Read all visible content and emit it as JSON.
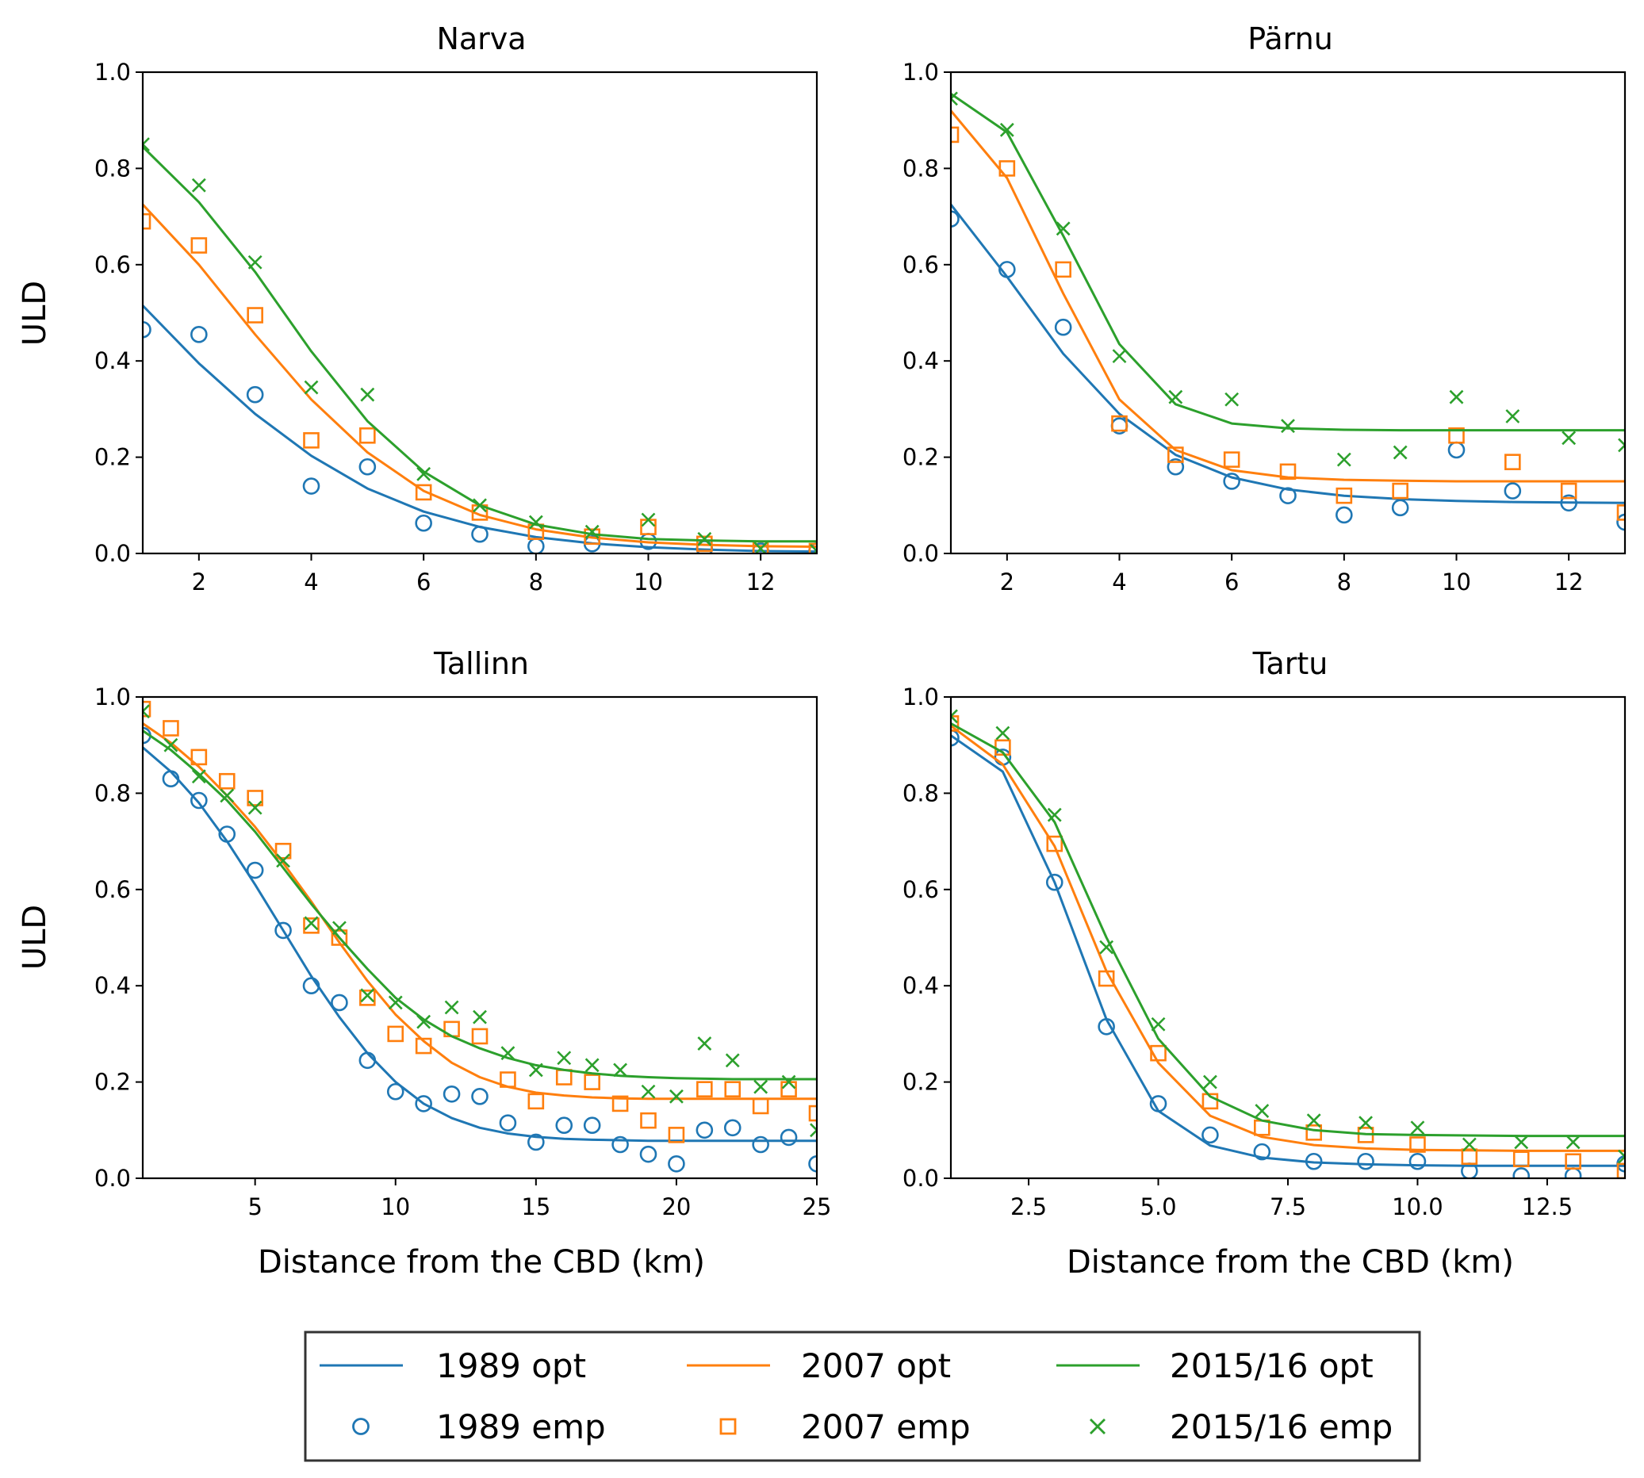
{
  "figure": {
    "colors": {
      "1989": "#1f77b4",
      "2007": "#ff7f0e",
      "2015/16": "#2ca02c"
    },
    "legend": {
      "placement": "bottom-center",
      "columns": [
        {
          "opt_label": "1989 opt",
          "emp_label": "1989 emp",
          "color": "#1f77b4",
          "marker": "circle"
        },
        {
          "opt_label": "2007 opt",
          "emp_label": "2007 emp",
          "color": "#ff7f0e",
          "marker": "square"
        },
        {
          "opt_label": "2015/16 opt",
          "emp_label": "2015/16 emp",
          "color": "#2ca02c",
          "marker": "x"
        }
      ]
    }
  },
  "chart_data": [
    {
      "type": "line",
      "title": "Narva",
      "xlabel": "",
      "ylabel": "ULD",
      "xlim": [
        1,
        13
      ],
      "ylim": [
        0,
        1
      ],
      "xticks": [
        2,
        4,
        6,
        8,
        10,
        12
      ],
      "xtick_labels": [
        "2",
        "4",
        "6",
        "8",
        "10",
        "12"
      ],
      "yticks": [
        0,
        0.2,
        0.4,
        0.6,
        0.8,
        1
      ],
      "ytick_labels": [
        "0.0",
        "0.2",
        "0.4",
        "0.6",
        "0.8",
        "1.0"
      ],
      "grid": false,
      "x": [
        1,
        2,
        3,
        4,
        5,
        6,
        7,
        8,
        9,
        10,
        11,
        12,
        13
      ],
      "series": [
        {
          "name": "1989 opt",
          "kind": "line",
          "color": "#1f77b4",
          "values": [
            0.515,
            0.395,
            0.29,
            0.203,
            0.135,
            0.087,
            0.055,
            0.034,
            0.021,
            0.013,
            0.008,
            0.005,
            0.004
          ]
        },
        {
          "name": "1989 emp",
          "kind": "marker",
          "marker": "circle",
          "color": "#1f77b4",
          "values": [
            0.465,
            0.455,
            0.33,
            0.14,
            0.18,
            0.063,
            0.04,
            0.015,
            0.02,
            0.025,
            0.01,
            0.005,
            0.005
          ]
        },
        {
          "name": "2007 opt",
          "kind": "line",
          "color": "#ff7f0e",
          "values": [
            0.725,
            0.6,
            0.455,
            0.32,
            0.21,
            0.13,
            0.08,
            0.05,
            0.033,
            0.023,
            0.018,
            0.015,
            0.014
          ]
        },
        {
          "name": "2007 emp",
          "kind": "marker",
          "marker": "square",
          "color": "#ff7f0e",
          "values": [
            0.69,
            0.64,
            0.495,
            0.235,
            0.245,
            0.127,
            0.085,
            0.045,
            0.035,
            0.055,
            0.02,
            0.01,
            0.005
          ]
        },
        {
          "name": "2015/16 opt",
          "kind": "line",
          "color": "#2ca02c",
          "values": [
            0.845,
            0.73,
            0.585,
            0.42,
            0.275,
            0.17,
            0.1,
            0.06,
            0.04,
            0.03,
            0.027,
            0.025,
            0.025
          ]
        },
        {
          "name": "2015/16 emp",
          "kind": "marker",
          "marker": "x",
          "color": "#2ca02c",
          "values": [
            0.85,
            0.765,
            0.605,
            0.345,
            0.33,
            0.165,
            0.1,
            0.065,
            0.045,
            0.07,
            0.03,
            0.01,
            0.005
          ]
        }
      ]
    },
    {
      "type": "line",
      "title": "Pärnu",
      "xlabel": "",
      "ylabel": "",
      "xlim": [
        1,
        13
      ],
      "ylim": [
        0,
        1
      ],
      "xticks": [
        2,
        4,
        6,
        8,
        10,
        12
      ],
      "xtick_labels": [
        "2",
        "4",
        "6",
        "8",
        "10",
        "12"
      ],
      "yticks": [
        0,
        0.2,
        0.4,
        0.6,
        0.8,
        1
      ],
      "ytick_labels": [
        "0.0",
        "0.2",
        "0.4",
        "0.6",
        "0.8",
        "1.0"
      ],
      "grid": false,
      "x": [
        1,
        2,
        3,
        4,
        5,
        6,
        7,
        8,
        9,
        10,
        11,
        12,
        13
      ],
      "series": [
        {
          "name": "1989 opt",
          "kind": "line",
          "color": "#1f77b4",
          "values": [
            0.725,
            0.575,
            0.415,
            0.29,
            0.205,
            0.158,
            0.133,
            0.12,
            0.113,
            0.109,
            0.107,
            0.106,
            0.105
          ]
        },
        {
          "name": "1989 emp",
          "kind": "marker",
          "marker": "circle",
          "color": "#1f77b4",
          "values": [
            0.695,
            0.59,
            0.47,
            0.265,
            0.18,
            0.15,
            0.12,
            0.08,
            0.095,
            0.215,
            0.13,
            0.105,
            0.065
          ]
        },
        {
          "name": "2007 opt",
          "kind": "line",
          "color": "#ff7f0e",
          "values": [
            0.92,
            0.78,
            0.54,
            0.32,
            0.215,
            0.173,
            0.158,
            0.153,
            0.151,
            0.15,
            0.15,
            0.15,
            0.15
          ]
        },
        {
          "name": "2007 emp",
          "kind": "marker",
          "marker": "square",
          "color": "#ff7f0e",
          "values": [
            0.87,
            0.8,
            0.59,
            0.27,
            0.205,
            0.195,
            0.17,
            0.12,
            0.13,
            0.245,
            0.19,
            0.13,
            0.085
          ]
        },
        {
          "name": "2015/16 opt",
          "kind": "line",
          "color": "#2ca02c",
          "values": [
            0.955,
            0.875,
            0.66,
            0.435,
            0.31,
            0.27,
            0.26,
            0.257,
            0.256,
            0.256,
            0.256,
            0.256,
            0.256
          ]
        },
        {
          "name": "2015/16 emp",
          "kind": "marker",
          "marker": "x",
          "color": "#2ca02c",
          "values": [
            0.945,
            0.88,
            0.675,
            0.41,
            0.325,
            0.32,
            0.265,
            0.195,
            0.21,
            0.325,
            0.285,
            0.24,
            0.225
          ]
        }
      ]
    },
    {
      "type": "line",
      "title": "Tallinn",
      "xlabel": "Distance from the CBD (km)",
      "ylabel": "ULD",
      "xlim": [
        1,
        25
      ],
      "ylim": [
        0,
        1
      ],
      "xticks": [
        5,
        10,
        15,
        20,
        25
      ],
      "xtick_labels": [
        "5",
        "10",
        "15",
        "20",
        "25"
      ],
      "yticks": [
        0,
        0.2,
        0.4,
        0.6,
        0.8,
        1
      ],
      "ytick_labels": [
        "0.0",
        "0.2",
        "0.4",
        "0.6",
        "0.8",
        "1.0"
      ],
      "grid": false,
      "x": [
        1,
        2,
        3,
        4,
        5,
        6,
        7,
        8,
        9,
        10,
        11,
        12,
        13,
        14,
        15,
        16,
        17,
        18,
        19,
        20,
        21,
        22,
        23,
        24,
        25
      ],
      "series": [
        {
          "name": "1989 opt",
          "kind": "line",
          "color": "#1f77b4",
          "values": [
            0.895,
            0.845,
            0.78,
            0.7,
            0.61,
            0.515,
            0.42,
            0.335,
            0.26,
            0.2,
            0.155,
            0.125,
            0.105,
            0.093,
            0.086,
            0.082,
            0.08,
            0.079,
            0.078,
            0.078,
            0.078,
            0.078,
            0.078,
            0.078,
            0.078
          ]
        },
        {
          "name": "1989 emp",
          "kind": "marker",
          "marker": "circle",
          "color": "#1f77b4",
          "values": [
            0.92,
            0.83,
            0.785,
            0.715,
            0.64,
            0.515,
            0.4,
            0.365,
            0.245,
            0.18,
            0.155,
            0.175,
            0.17,
            0.115,
            0.075,
            0.11,
            0.11,
            0.07,
            0.05,
            0.03,
            0.1,
            0.105,
            0.07,
            0.085,
            0.03
          ]
        },
        {
          "name": "2007 opt",
          "kind": "line",
          "color": "#ff7f0e",
          "values": [
            0.945,
            0.905,
            0.855,
            0.795,
            0.73,
            0.655,
            0.575,
            0.49,
            0.41,
            0.34,
            0.285,
            0.24,
            0.21,
            0.19,
            0.178,
            0.172,
            0.168,
            0.166,
            0.165,
            0.165,
            0.165,
            0.165,
            0.165,
            0.165,
            0.165
          ]
        },
        {
          "name": "2007 emp",
          "kind": "marker",
          "marker": "square",
          "color": "#ff7f0e",
          "values": [
            0.975,
            0.935,
            0.875,
            0.825,
            0.79,
            0.68,
            0.525,
            0.5,
            0.375,
            0.3,
            0.275,
            0.31,
            0.295,
            0.205,
            0.16,
            0.21,
            0.2,
            0.155,
            0.12,
            0.09,
            0.185,
            0.185,
            0.15,
            0.185,
            0.135
          ]
        },
        {
          "name": "2015/16 opt",
          "kind": "line",
          "color": "#2ca02c",
          "values": [
            0.93,
            0.89,
            0.84,
            0.785,
            0.72,
            0.645,
            0.57,
            0.5,
            0.435,
            0.375,
            0.33,
            0.295,
            0.27,
            0.25,
            0.235,
            0.225,
            0.218,
            0.213,
            0.21,
            0.208,
            0.207,
            0.206,
            0.206,
            0.206,
            0.206
          ]
        },
        {
          "name": "2015/16 emp",
          "kind": "marker",
          "marker": "x",
          "color": "#2ca02c",
          "values": [
            0.97,
            0.9,
            0.835,
            0.795,
            0.77,
            0.66,
            0.53,
            0.52,
            0.38,
            0.365,
            0.325,
            0.355,
            0.335,
            0.26,
            0.225,
            0.25,
            0.235,
            0.225,
            0.18,
            0.17,
            0.28,
            0.245,
            0.19,
            0.2,
            0.1
          ]
        }
      ]
    },
    {
      "type": "line",
      "title": "Tartu",
      "xlabel": "Distance from the CBD (km)",
      "ylabel": "",
      "xlim": [
        1,
        14
      ],
      "ylim": [
        0,
        1
      ],
      "xticks": [
        2.5,
        5,
        7.5,
        10,
        12.5
      ],
      "xtick_labels": [
        "2.5",
        "5.0",
        "7.5",
        "10.0",
        "12.5"
      ],
      "yticks": [
        0,
        0.2,
        0.4,
        0.6,
        0.8,
        1
      ],
      "ytick_labels": [
        "0.0",
        "0.2",
        "0.4",
        "0.6",
        "0.8",
        "1.0"
      ],
      "grid": false,
      "x": [
        1,
        2,
        3,
        4,
        5,
        6,
        7,
        8,
        9,
        10,
        11,
        12,
        13,
        14
      ],
      "series": [
        {
          "name": "1989 opt",
          "kind": "line",
          "color": "#1f77b4",
          "values": [
            0.92,
            0.845,
            0.615,
            0.33,
            0.14,
            0.068,
            0.043,
            0.033,
            0.029,
            0.027,
            0.026,
            0.026,
            0.026,
            0.026
          ]
        },
        {
          "name": "1989 emp",
          "kind": "marker",
          "marker": "circle",
          "color": "#1f77b4",
          "values": [
            0.915,
            0.875,
            0.615,
            0.315,
            0.155,
            0.09,
            0.055,
            0.035,
            0.035,
            0.035,
            0.015,
            0.005,
            0.005,
            0.03
          ]
        },
        {
          "name": "2007 opt",
          "kind": "line",
          "color": "#ff7f0e",
          "values": [
            0.94,
            0.86,
            0.69,
            0.43,
            0.24,
            0.13,
            0.086,
            0.069,
            0.062,
            0.059,
            0.058,
            0.057,
            0.057,
            0.057
          ]
        },
        {
          "name": "2007 emp",
          "kind": "marker",
          "marker": "square",
          "color": "#ff7f0e",
          "values": [
            0.945,
            0.895,
            0.695,
            0.415,
            0.26,
            0.16,
            0.105,
            0.095,
            0.09,
            0.07,
            0.045,
            0.04,
            0.035,
            0.015
          ]
        },
        {
          "name": "2015/16 opt",
          "kind": "line",
          "color": "#2ca02c",
          "values": [
            0.945,
            0.885,
            0.74,
            0.5,
            0.29,
            0.17,
            0.12,
            0.1,
            0.092,
            0.09,
            0.089,
            0.088,
            0.088,
            0.088
          ]
        },
        {
          "name": "2015/16 emp",
          "kind": "marker",
          "marker": "x",
          "color": "#2ca02c",
          "values": [
            0.96,
            0.925,
            0.755,
            0.48,
            0.32,
            0.2,
            0.14,
            0.12,
            0.115,
            0.105,
            0.07,
            0.075,
            0.075,
            0.045
          ]
        }
      ]
    }
  ]
}
